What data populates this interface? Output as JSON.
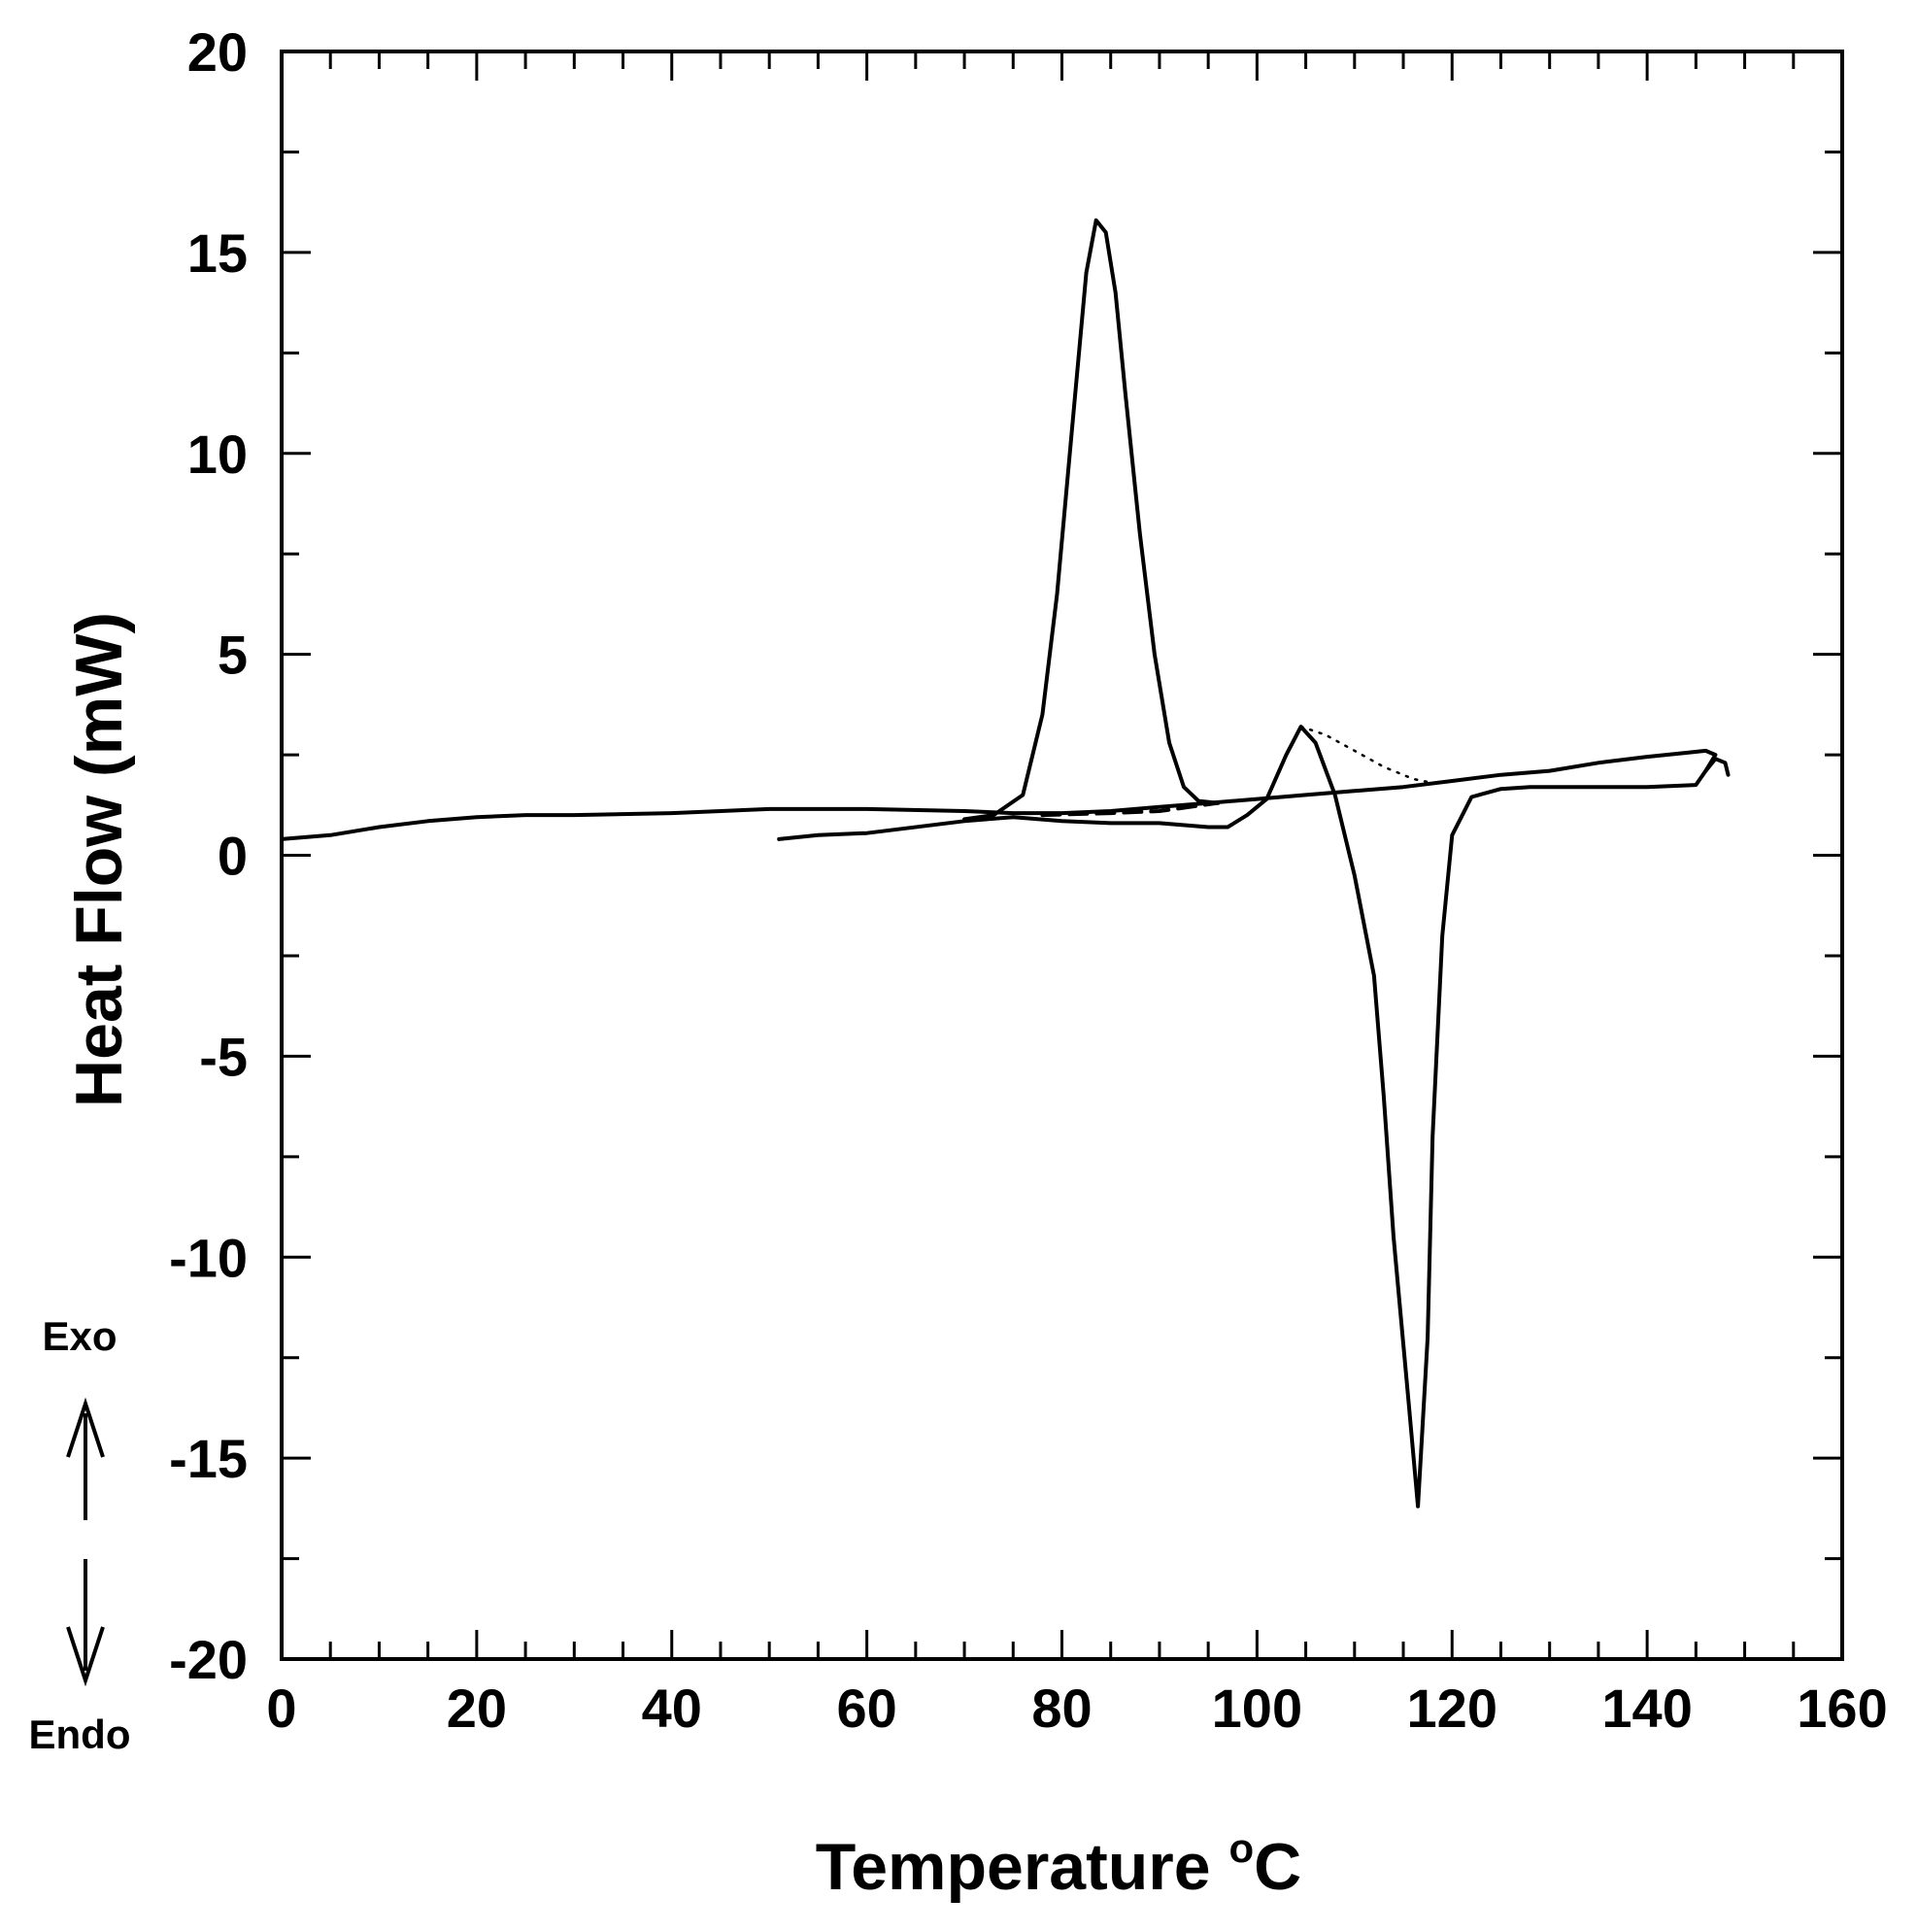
{
  "chart_data": {
    "type": "line",
    "xlabel": "Temperature",
    "xlabel_unit": "C",
    "xlabel_unit_prefix": "o",
    "ylabel": "Heat Flow (mW)",
    "xlim": [
      0,
      160
    ],
    "ylim": [
      -20,
      20
    ],
    "x_tick_labels": [
      "0",
      "20",
      "40",
      "60",
      "80",
      "100",
      "120",
      "140",
      "160"
    ],
    "y_tick_labels": [
      "-20",
      "-15",
      "-10",
      "-5",
      "0",
      "5",
      "10",
      "15",
      "20"
    ],
    "grid": false,
    "direction_labels": {
      "up": "Exo",
      "down": "Endo"
    },
    "line_color": "#000000",
    "series": [
      {
        "style": "solid",
        "points": [
          [
            0,
            0.4
          ],
          [
            5,
            0.5
          ],
          [
            10,
            0.7
          ],
          [
            15,
            0.85
          ],
          [
            20,
            0.95
          ],
          [
            25,
            1.0
          ],
          [
            30,
            1.0
          ],
          [
            40,
            1.05
          ],
          [
            50,
            1.15
          ],
          [
            60,
            1.15
          ],
          [
            70,
            1.1
          ],
          [
            75,
            1.05
          ],
          [
            80,
            1.05
          ],
          [
            85,
            1.1
          ],
          [
            90,
            1.2
          ],
          [
            95,
            1.3
          ],
          [
            100,
            1.4
          ],
          [
            105,
            1.5
          ],
          [
            110,
            1.6
          ],
          [
            115,
            1.7
          ],
          [
            120,
            1.85
          ],
          [
            125,
            2.0
          ],
          [
            130,
            2.1
          ],
          [
            135,
            2.3
          ],
          [
            140,
            2.45
          ],
          [
            144,
            2.55
          ],
          [
            146,
            2.6
          ],
          [
            147,
            2.5
          ],
          [
            146,
            2.1
          ],
          [
            145,
            1.75
          ],
          [
            140,
            1.7
          ],
          [
            130,
            1.7
          ],
          [
            128,
            1.7
          ],
          [
            125,
            1.65
          ],
          [
            122,
            1.45
          ],
          [
            120,
            0.5
          ],
          [
            119,
            -2
          ],
          [
            118,
            -7
          ],
          [
            117.5,
            -12
          ],
          [
            116.5,
            -16.2
          ],
          [
            115.5,
            -13.5
          ],
          [
            114,
            -9.5
          ],
          [
            113,
            -6
          ],
          [
            112,
            -3
          ],
          [
            110,
            -0.5
          ],
          [
            108,
            1.5
          ],
          [
            106,
            2.8
          ],
          [
            104.5,
            3.2
          ],
          [
            103,
            2.5
          ],
          [
            101,
            1.4
          ],
          [
            99,
            1.0
          ],
          [
            97,
            0.7
          ],
          [
            95,
            0.7
          ],
          [
            90,
            0.8
          ],
          [
            85,
            0.8
          ],
          [
            80,
            0.85
          ],
          [
            75,
            0.95
          ],
          [
            70,
            0.85
          ],
          [
            60,
            0.55
          ],
          [
            55,
            0.5
          ],
          [
            51,
            0.4
          ]
        ]
      },
      {
        "style": "solid",
        "points": [
          [
            70,
            0.9
          ],
          [
            73,
            1.0
          ],
          [
            76,
            1.5
          ],
          [
            78,
            3.5
          ],
          [
            79.5,
            6.5
          ],
          [
            81,
            10.5
          ],
          [
            82.5,
            14.5
          ],
          [
            83.5,
            15.8
          ],
          [
            84.5,
            15.5
          ],
          [
            85.5,
            14
          ],
          [
            86.5,
            11.5
          ],
          [
            88,
            8
          ],
          [
            89.5,
            5
          ],
          [
            91,
            2.8
          ],
          [
            92.5,
            1.7
          ],
          [
            94,
            1.35
          ],
          [
            96,
            1.3
          ]
        ]
      },
      {
        "style": "dashed",
        "points": [
          [
            78,
            1.0
          ],
          [
            85,
            1.05
          ],
          [
            90,
            1.1
          ],
          [
            96,
            1.3
          ]
        ]
      },
      {
        "style": "dotted",
        "points": [
          [
            104.5,
            3.2
          ],
          [
            107,
            3.0
          ],
          [
            110,
            2.6
          ],
          [
            113,
            2.2
          ],
          [
            116,
            1.9
          ],
          [
            118,
            1.8
          ]
        ]
      },
      {
        "style": "solid",
        "points": [
          [
            146,
            2.1
          ],
          [
            147,
            2.4
          ],
          [
            148,
            2.3
          ],
          [
            148.3,
            2.0
          ]
        ]
      }
    ]
  }
}
